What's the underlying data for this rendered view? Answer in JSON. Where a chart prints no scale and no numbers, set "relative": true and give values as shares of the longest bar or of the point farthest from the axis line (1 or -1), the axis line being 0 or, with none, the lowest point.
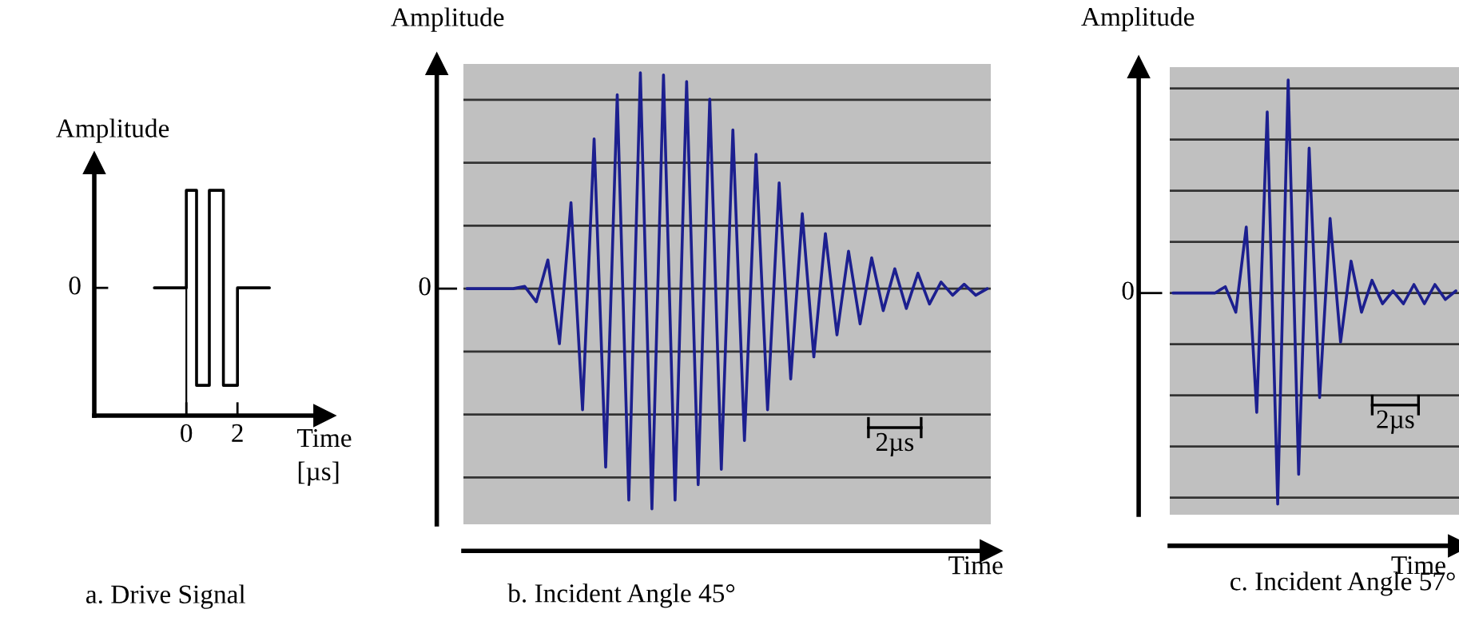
{
  "chart_data": [
    {
      "type": "line",
      "title": "a. Drive Signal",
      "xlabel": "Time\n[µs]",
      "ylabel": "Amplitude",
      "relative": true,
      "x": [
        -1.25,
        0,
        0,
        0.4,
        0.4,
        0.9,
        0.9,
        1.45,
        1.45,
        2.0,
        2.0,
        3.25
      ],
      "series": [
        {
          "color": "#000000",
          "values": [
            0,
            0,
            1,
            1,
            -1,
            -1,
            1,
            1,
            -1,
            -1,
            0,
            0
          ]
        }
      ],
      "xlim": [
        -3.6,
        5.4
      ],
      "xticks": [
        0,
        2
      ],
      "ref_lines": [
        {
          "axis": "x",
          "value": 0
        }
      ],
      "annotations": [
        "0"
      ]
    },
    {
      "type": "line",
      "title": "b. Incident Angle 45°",
      "xlabel": "Time",
      "ylabel": "Amplitude",
      "relative": true,
      "categories": [
        null,
        null,
        null,
        null,
        null,
        null,
        null,
        null,
        null,
        null,
        null,
        null,
        null,
        null,
        null,
        null,
        null,
        null,
        null,
        null,
        null,
        null,
        null,
        null,
        null,
        null,
        null,
        null,
        null,
        null,
        null,
        null,
        null,
        null,
        null,
        null,
        null,
        null,
        null,
        null,
        null,
        null,
        null,
        null,
        null,
        null
      ],
      "series": [
        {
          "color": "#1c1f8f",
          "values": [
            0,
            0,
            0,
            0,
            0,
            0.01,
            -0.06,
            0.13,
            -0.25,
            0.39,
            -0.55,
            0.68,
            -0.81,
            0.88,
            -0.96,
            0.98,
            -1,
            0.97,
            -0.96,
            0.94,
            -0.89,
            0.86,
            -0.82,
            0.72,
            -0.69,
            0.61,
            -0.55,
            0.48,
            -0.41,
            0.34,
            -0.31,
            0.25,
            -0.21,
            0.17,
            -0.16,
            0.14,
            -0.1,
            0.09,
            -0.09,
            0.07,
            -0.07,
            0.03,
            -0.03,
            0.02,
            -0.03,
            0
          ]
        }
      ],
      "grid": "y",
      "annotations": [
        "0",
        "2µs"
      ]
    },
    {
      "type": "line",
      "title": "c. Incident Angle 57°",
      "xlabel": "Time",
      "ylabel": "Amplitude",
      "relative": true,
      "categories": [
        null,
        null,
        null,
        null,
        null,
        null,
        null,
        null,
        null,
        null,
        null,
        null,
        null,
        null,
        null,
        null,
        null,
        null,
        null,
        null,
        null,
        null,
        null,
        null,
        null,
        null,
        null,
        null
      ],
      "series": [
        {
          "color": "#1c1f8f",
          "values": [
            0,
            0,
            0,
            0,
            0,
            0.03,
            -0.09,
            0.31,
            -0.56,
            0.85,
            -0.99,
            1,
            -0.85,
            0.68,
            -0.49,
            0.35,
            -0.23,
            0.15,
            -0.09,
            0.06,
            -0.05,
            0.01,
            -0.05,
            0.04,
            -0.05,
            0.04,
            -0.03,
            0.01
          ]
        }
      ],
      "grid": "y",
      "annotations": [
        "0",
        "2µs"
      ]
    }
  ]
}
